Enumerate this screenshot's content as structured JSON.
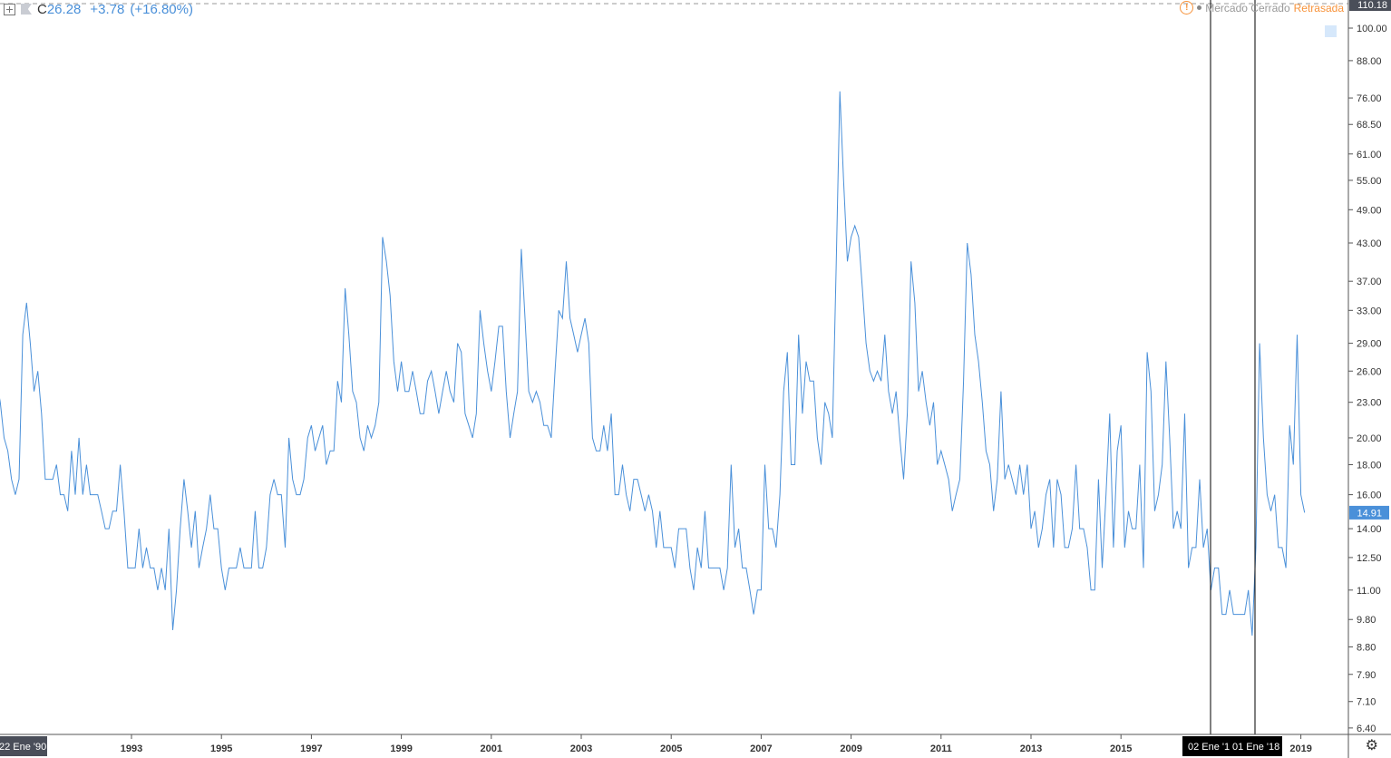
{
  "legend": {
    "symbol": "C",
    "price": "26.28",
    "change": "+3.78",
    "change_pct": "(+16.80%)"
  },
  "status": {
    "market": "Mercado Cerrado",
    "delay": "Retrasada"
  },
  "icons": {
    "add": "plus-box-icon",
    "flag": "flag-icon",
    "warning": "warning-icon",
    "save": "save-icon",
    "settings": "gear-icon"
  },
  "colors": {
    "line": "#4a90d9",
    "last_price_bg": "#4a90d9",
    "label_dark": "#4a4e59",
    "crosshair": "#000000",
    "warning": "#f7933b"
  },
  "chart_data": {
    "type": "line",
    "yscale": "log",
    "ylim": [
      6.4,
      110.18
    ],
    "xlim": [
      "1990-01",
      "2019-02"
    ],
    "grid": false,
    "ytick_labels": [
      "100.00",
      "88.00",
      "76.00",
      "68.50",
      "61.00",
      "55.00",
      "49.00",
      "43.00",
      "37.00",
      "33.00",
      "29.00",
      "26.00",
      "23.00",
      "20.00",
      "18.00",
      "16.00",
      "14.00",
      "12.50",
      "11.00",
      "9.80",
      "8.80",
      "7.90",
      "7.10",
      "6.40"
    ],
    "xtick_labels": [
      "1993",
      "1995",
      "1997",
      "1999",
      "2001",
      "2003",
      "2005",
      "2007",
      "2009",
      "2011",
      "2013",
      "2015",
      "2019"
    ],
    "top_label": "110.18",
    "last_value_label": "14.91",
    "crosshair_labels": {
      "start": "22 Ene '90",
      "a": "02 Ene '1",
      "b": "01 Ene '18"
    },
    "series": [
      {
        "start": "1990-01",
        "frequency": "monthly",
        "values": {
          "1990": [
            25,
            23,
            20,
            19,
            17,
            16,
            17,
            30,
            34,
            29,
            24,
            26
          ],
          "1991": [
            22,
            17,
            17,
            17,
            18,
            16,
            16,
            15,
            19,
            16,
            20,
            16
          ],
          "1992": [
            18,
            16,
            16,
            16,
            15,
            14,
            14,
            15,
            15,
            18,
            15,
            12
          ],
          "1993": [
            12,
            12,
            14,
            12,
            13,
            12,
            12,
            11,
            12,
            11,
            14,
            9.4
          ],
          "1994": [
            11,
            14,
            17,
            15,
            13,
            15,
            12,
            13,
            14,
            16,
            14,
            14
          ],
          "1995": [
            12,
            11,
            12,
            12,
            12,
            13,
            12,
            12,
            12,
            15,
            12,
            12
          ],
          "1996": [
            13,
            16,
            17,
            16,
            16,
            13,
            20,
            17,
            16,
            16,
            17,
            20
          ],
          "1997": [
            21,
            19,
            20,
            21,
            18,
            19,
            19,
            25,
            23,
            36,
            30,
            24
          ],
          "1998": [
            23,
            20,
            19,
            21,
            20,
            21,
            23,
            44,
            40,
            35,
            27,
            24
          ],
          "1999": [
            27,
            24,
            24,
            26,
            24,
            22,
            22,
            25,
            26,
            24,
            22,
            24
          ],
          "2000": [
            26,
            24,
            23,
            29,
            28,
            22,
            21,
            20,
            22,
            33,
            29,
            26
          ],
          "2001": [
            24,
            27,
            31,
            31,
            24,
            20,
            22,
            24,
            42,
            32,
            24,
            23
          ],
          "2002": [
            24,
            23,
            21,
            21,
            20,
            26,
            33,
            32,
            40,
            32,
            30,
            28
          ],
          "2003": [
            30,
            32,
            29,
            20,
            19,
            19,
            21,
            19,
            22,
            16,
            16,
            18
          ],
          "2004": [
            16,
            15,
            17,
            17,
            16,
            15,
            16,
            15,
            13,
            15,
            13,
            13
          ],
          "2005": [
            13,
            12,
            14,
            14,
            14,
            12,
            11,
            13,
            12,
            15,
            12,
            12
          ],
          "2006": [
            12,
            12,
            11,
            12,
            18,
            13,
            14,
            12,
            12,
            11,
            10,
            11
          ],
          "2007": [
            11,
            18,
            14,
            14,
            13,
            16,
            24,
            28,
            18,
            18,
            30,
            22
          ],
          "2008": [
            27,
            25,
            25,
            20,
            18,
            23,
            22,
            20,
            39,
            78,
            55,
            40
          ],
          "2009": [
            44,
            46,
            44,
            36,
            29,
            26,
            25,
            26,
            25,
            30,
            24,
            22
          ],
          "2010": [
            24,
            20,
            17,
            22,
            40,
            34,
            24,
            26,
            23,
            21,
            23,
            18
          ],
          "2011": [
            19,
            18,
            17,
            15,
            16,
            17,
            25,
            43,
            38,
            30,
            27,
            23
          ],
          "2012": [
            19,
            18,
            15,
            17,
            24,
            17,
            18,
            17,
            16,
            18,
            16,
            18
          ],
          "2013": [
            14,
            15,
            13,
            14,
            16,
            17,
            13,
            17,
            16,
            13,
            13,
            14
          ],
          "2014": [
            18,
            14,
            14,
            13,
            11,
            11,
            17,
            12,
            16,
            22,
            13,
            19
          ],
          "2015": [
            21,
            13,
            15,
            14,
            14,
            18,
            12,
            28,
            24,
            15,
            16,
            18
          ],
          "2016": [
            27,
            20,
            14,
            15,
            14,
            22,
            12,
            13,
            13,
            17,
            13,
            14
          ],
          "2017": [
            11,
            12,
            12,
            10,
            10,
            11,
            10,
            10,
            10,
            10,
            11,
            9.2
          ],
          "2018": [
            13,
            29,
            20,
            16,
            15,
            16,
            13,
            13,
            12,
            21,
            18,
            30
          ],
          "2019": [
            16,
            14.91
          ]
        }
      }
    ]
  }
}
